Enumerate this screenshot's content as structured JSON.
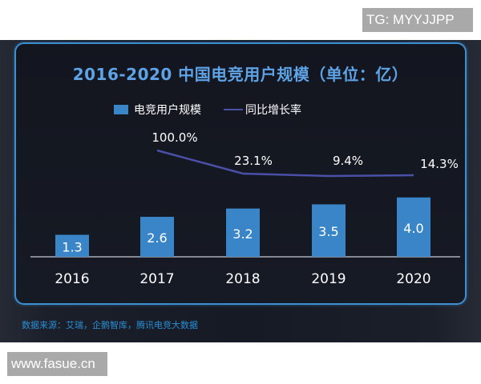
{
  "watermarks": {
    "top": "TG: MYYJJPP",
    "bottom": "www.fasue.cn"
  },
  "chart_data": {
    "type": "bar",
    "title": "2016-2020 中国电竞用户规模（单位：亿）",
    "categories": [
      "2016",
      "2017",
      "2018",
      "2019",
      "2020"
    ],
    "series": [
      {
        "name": "电竞用户规模",
        "type": "bar",
        "values": [
          1.3,
          2.6,
          3.2,
          3.5,
          4.0
        ],
        "labels": [
          "1.3",
          "2.6",
          "3.2",
          "3.5",
          "4.0"
        ],
        "color": "#3a85c8"
      },
      {
        "name": "同比增长率",
        "type": "line",
        "values": [
          null,
          100.0,
          23.1,
          9.4,
          14.3
        ],
        "labels": [
          "",
          "100.0%",
          "23.1%",
          "9.4%",
          "14.3%"
        ],
        "color": "#4a4fa8"
      }
    ],
    "xlabel": "",
    "ylabel": "",
    "unit": "亿",
    "legend_position": "top",
    "grid": false,
    "source": "数据来源：艾瑞，企鹅智库，腾讯电竞大数据"
  },
  "colors": {
    "background": "#161a24",
    "panel_border": "#3d8fd1",
    "title": "#5ea3e6",
    "bar": "#3a85c8",
    "line": "#4a4fa8",
    "source": "#2a8fd6"
  }
}
